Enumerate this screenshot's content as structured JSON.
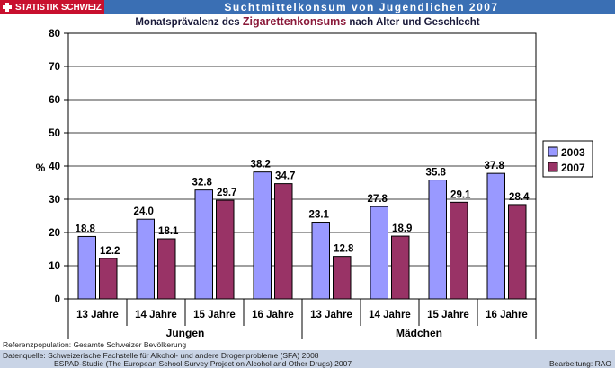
{
  "header": {
    "brand": "STATISTIK SCHWEIZ",
    "title": "Suchtmittelkonsum von Jugendlichen 2007",
    "subtitle_pre": "Monatsprävalenz des ",
    "subtitle_em": "Zigarettenkonsums",
    "subtitle_post": " nach Alter und Geschlecht"
  },
  "chart_data": {
    "type": "bar",
    "title": "Monatsprävalenz des Zigarettenkonsums nach Alter und Geschlecht",
    "ylabel": "%",
    "ylim": [
      0,
      80
    ],
    "yticks": [
      0,
      10,
      20,
      30,
      40,
      50,
      60,
      70,
      80
    ],
    "grid": true,
    "legend_position": "right",
    "categories": [
      "13 Jahre",
      "14 Jahre",
      "15 Jahre",
      "16 Jahre",
      "13 Jahre",
      "14 Jahre",
      "15 Jahre",
      "16 Jahre"
    ],
    "groups": [
      {
        "label": "Jungen",
        "start": 0,
        "end": 3
      },
      {
        "label": "Mädchen",
        "start": 4,
        "end": 7
      }
    ],
    "series": [
      {
        "name": "2003",
        "color": "#9999ff",
        "values": [
          18.8,
          24.0,
          32.8,
          38.2,
          23.1,
          27.8,
          35.8,
          37.8
        ],
        "labels": [
          "18.8",
          "24.0",
          "32.8",
          "38.2",
          "23.1",
          "27.8",
          "35.8",
          "37.8"
        ]
      },
      {
        "name": "2007",
        "color": "#993366",
        "values": [
          12.2,
          18.1,
          29.7,
          34.7,
          12.8,
          18.9,
          29.1,
          28.4
        ],
        "labels": [
          "12.2",
          "18.1",
          "29.7",
          "34.7",
          "12.8",
          "18.9",
          "29.1",
          "28.4"
        ]
      }
    ]
  },
  "footer": {
    "referenz": "Referenzpopulation: Gesamte Schweizer Bevölkerung",
    "quelle1": "Datenquelle: Schweizerische Fachstelle für Alkohol- und andere Drogenprobleme (SFA) 2008",
    "quelle2": "ESPAD-Studie (The European School Survey Project on Alcohol and Other Drugs) 2007",
    "bearbeitung": "Bearbeitung: RAO"
  }
}
